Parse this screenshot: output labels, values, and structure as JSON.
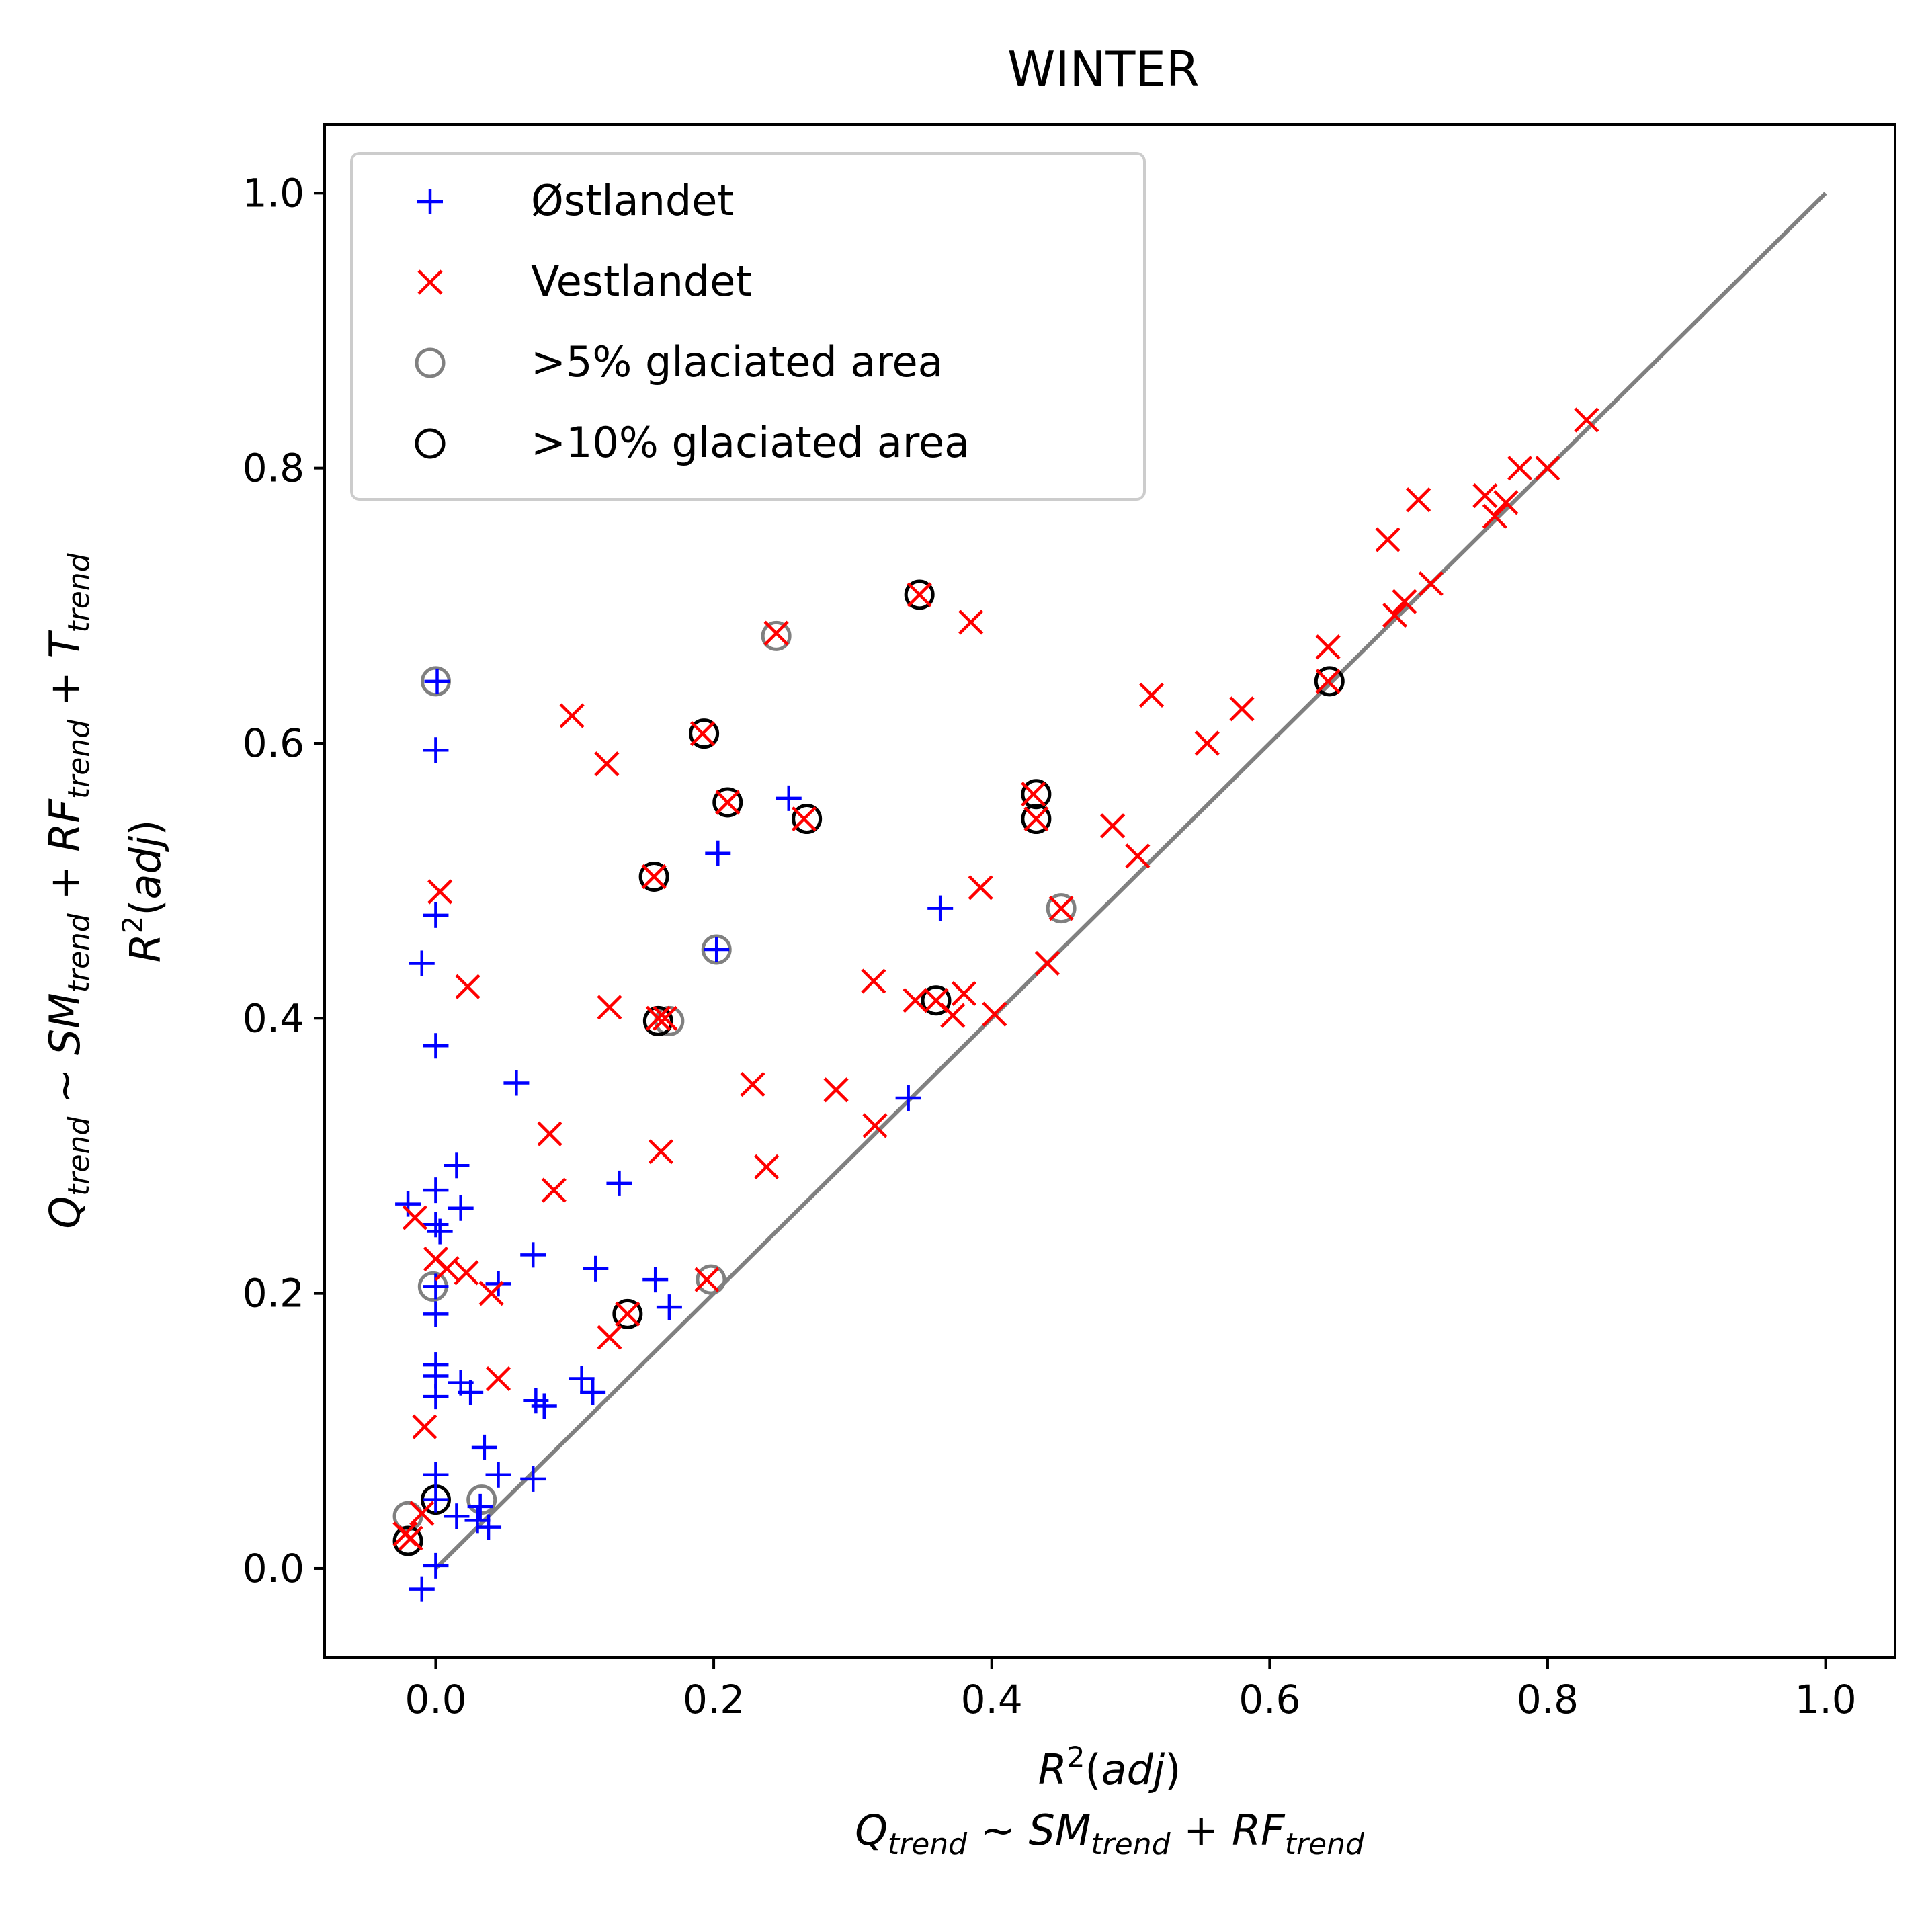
{
  "chart_data": {
    "type": "scatter",
    "title": "WINTER",
    "xlabel_line1": "R2(adj)",
    "xlabel_line2": "Qtrend ~ SMtrend + RFtrend",
    "ylabel_line1": "Qtrend ~ SMtrend + RFtrend + Ttrend",
    "ylabel_line2": "R2(adj)",
    "xlim": [
      -0.08,
      1.05
    ],
    "ylim": [
      -0.065,
      1.05
    ],
    "x_ticks": [
      0.0,
      0.2,
      0.4,
      0.6,
      0.8,
      1.0
    ],
    "y_ticks": [
      0.0,
      0.2,
      0.4,
      0.6,
      0.8,
      1.0
    ],
    "tick_labels": [
      "0.0",
      "0.2",
      "0.4",
      "0.6",
      "0.8",
      "1.0"
    ],
    "reference_line": {
      "x": [
        0,
        1
      ],
      "y": [
        0,
        1
      ],
      "color": "#808080"
    },
    "legend_position": "upper-left",
    "legend": [
      {
        "label": "Østlandet",
        "marker": "plus",
        "color": "#0000ff"
      },
      {
        "label": "Vestlandet",
        "marker": "x",
        "color": "#ff0000"
      },
      {
        "label": ">5% glaciated area",
        "marker": "circle",
        "color": "#808080"
      },
      {
        "label": ">10% glaciated area",
        "marker": "circle",
        "color": "#000000"
      }
    ],
    "series": [
      {
        "name": "Østlandet",
        "marker": "plus",
        "color": "#0000ff",
        "points": [
          [
            0.001,
            0.645
          ],
          [
            0.0,
            0.595
          ],
          [
            0.0,
            0.475
          ],
          [
            -0.01,
            0.44
          ],
          [
            0.0,
            0.38
          ],
          [
            0.058,
            0.353
          ],
          [
            0.015,
            0.293
          ],
          [
            0.132,
            0.28
          ],
          [
            -0.02,
            0.265
          ],
          [
            0.0,
            0.275
          ],
          [
            0.018,
            0.262
          ],
          [
            0.0,
            0.25
          ],
          [
            0.003,
            0.245
          ],
          [
            0.07,
            0.228
          ],
          [
            0.115,
            0.218
          ],
          [
            0.158,
            0.21
          ],
          [
            0.045,
            0.207
          ],
          [
            0.0,
            0.205
          ],
          [
            0.168,
            0.19
          ],
          [
            0.0,
            0.185
          ],
          [
            0.0,
            0.148
          ],
          [
            0.0,
            0.14
          ],
          [
            0.018,
            0.135
          ],
          [
            0.025,
            0.128
          ],
          [
            0.105,
            0.138
          ],
          [
            0.113,
            0.128
          ],
          [
            0.072,
            0.122
          ],
          [
            0.078,
            0.118
          ],
          [
            0.0,
            0.125
          ],
          [
            0.035,
            0.088
          ],
          [
            0.045,
            0.068
          ],
          [
            0.07,
            0.065
          ],
          [
            0.0,
            0.068
          ],
          [
            0.0,
            0.05
          ],
          [
            0.032,
            0.045
          ],
          [
            0.015,
            0.038
          ],
          [
            0.03,
            0.035
          ],
          [
            0.038,
            0.03
          ],
          [
            0.0,
            0.002
          ],
          [
            -0.01,
            -0.015
          ],
          [
            0.203,
            0.52
          ],
          [
            0.254,
            0.56
          ],
          [
            0.202,
            0.45
          ],
          [
            0.363,
            0.48
          ],
          [
            0.34,
            0.342
          ]
        ]
      },
      {
        "name": "Vestlandet",
        "marker": "x",
        "color": "#ff0000",
        "points": [
          [
            0.828,
            0.835
          ],
          [
            0.78,
            0.8
          ],
          [
            0.8,
            0.8
          ],
          [
            0.755,
            0.78
          ],
          [
            0.77,
            0.775
          ],
          [
            0.707,
            0.777
          ],
          [
            0.762,
            0.765
          ],
          [
            0.685,
            0.748
          ],
          [
            0.716,
            0.716
          ],
          [
            0.697,
            0.703
          ],
          [
            0.69,
            0.693
          ],
          [
            0.348,
            0.708
          ],
          [
            0.385,
            0.688
          ],
          [
            0.245,
            0.68
          ],
          [
            0.642,
            0.67
          ],
          [
            0.642,
            0.645
          ],
          [
            0.515,
            0.635
          ],
          [
            0.58,
            0.625
          ],
          [
            0.555,
            0.6
          ],
          [
            0.098,
            0.62
          ],
          [
            0.192,
            0.607
          ],
          [
            0.123,
            0.585
          ],
          [
            0.21,
            0.557
          ],
          [
            0.43,
            0.563
          ],
          [
            0.432,
            0.545
          ],
          [
            0.265,
            0.545
          ],
          [
            0.487,
            0.54
          ],
          [
            0.505,
            0.518
          ],
          [
            0.157,
            0.503
          ],
          [
            0.392,
            0.495
          ],
          [
            0.003,
            0.492
          ],
          [
            0.45,
            0.48
          ],
          [
            0.023,
            0.423
          ],
          [
            0.315,
            0.427
          ],
          [
            0.125,
            0.408
          ],
          [
            0.345,
            0.413
          ],
          [
            0.36,
            0.413
          ],
          [
            0.38,
            0.418
          ],
          [
            0.372,
            0.402
          ],
          [
            0.402,
            0.403
          ],
          [
            0.16,
            0.4
          ],
          [
            0.165,
            0.4
          ],
          [
            0.44,
            0.44
          ],
          [
            0.228,
            0.352
          ],
          [
            0.288,
            0.348
          ],
          [
            0.316,
            0.322
          ],
          [
            0.082,
            0.316
          ],
          [
            0.162,
            0.303
          ],
          [
            0.238,
            0.292
          ],
          [
            0.085,
            0.275
          ],
          [
            -0.015,
            0.255
          ],
          [
            0.0,
            0.225
          ],
          [
            0.008,
            0.218
          ],
          [
            0.022,
            0.215
          ],
          [
            0.195,
            0.21
          ],
          [
            0.04,
            0.2
          ],
          [
            0.138,
            0.185
          ],
          [
            0.125,
            0.168
          ],
          [
            0.045,
            0.138
          ],
          [
            -0.008,
            0.103
          ],
          [
            -0.01,
            0.04
          ],
          [
            -0.018,
            0.022
          ],
          [
            -0.022,
            0.025
          ]
        ]
      },
      {
        "name": ">5% glaciated area",
        "marker": "circle",
        "color": "#808080",
        "points": [
          [
            0.0,
            0.645
          ],
          [
            0.245,
            0.678
          ],
          [
            0.202,
            0.45
          ],
          [
            0.45,
            0.48
          ],
          [
            0.168,
            0.398
          ],
          [
            0.198,
            0.21
          ],
          [
            -0.002,
            0.205
          ],
          [
            0.033,
            0.05
          ],
          [
            -0.02,
            0.038
          ]
        ]
      },
      {
        "name": ">10% glaciated area",
        "marker": "circle",
        "color": "#000000",
        "points": [
          [
            0.348,
            0.708
          ],
          [
            0.193,
            0.607
          ],
          [
            0.21,
            0.557
          ],
          [
            0.432,
            0.563
          ],
          [
            0.432,
            0.545
          ],
          [
            0.267,
            0.545
          ],
          [
            0.157,
            0.503
          ],
          [
            0.16,
            0.398
          ],
          [
            0.36,
            0.413
          ],
          [
            0.643,
            0.645
          ],
          [
            0.138,
            0.185
          ],
          [
            0.0,
            0.05
          ],
          [
            -0.02,
            0.02
          ]
        ]
      }
    ]
  }
}
